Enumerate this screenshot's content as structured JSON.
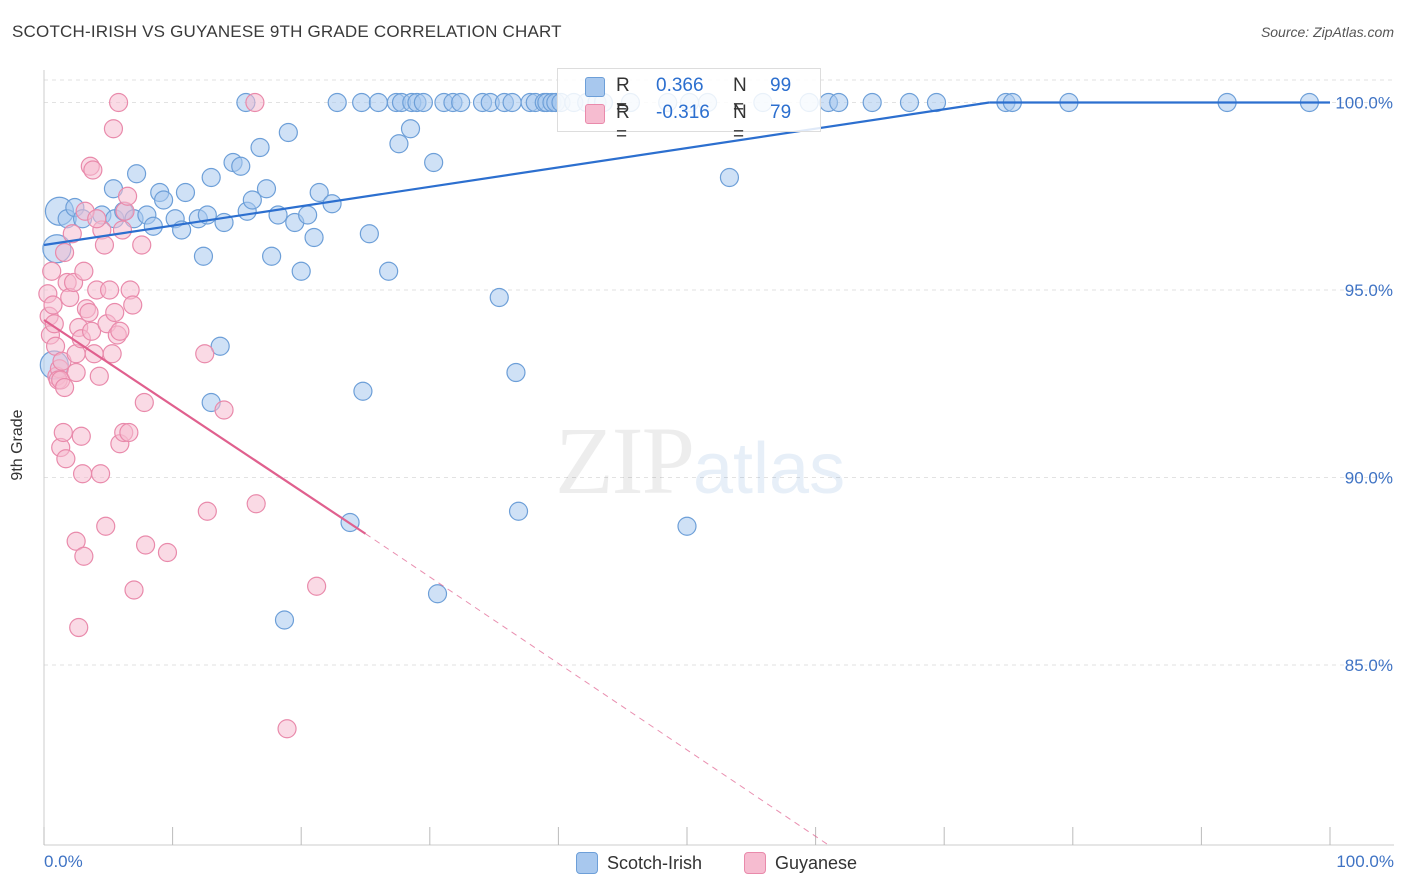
{
  "title": "SCOTCH-IRISH VS GUYANESE 9TH GRADE CORRELATION CHART",
  "source": "Source: ZipAtlas.com",
  "watermark": {
    "zip": "ZIP",
    "atlas": "atlas"
  },
  "legend_top": [
    {
      "r_label": "R =",
      "r_value": "0.366",
      "n_label": "N =",
      "n_value": "99"
    },
    {
      "r_label": "R =",
      "r_value": "-0.316",
      "n_label": "N =",
      "n_value": "79"
    }
  ],
  "legend_bottom": [
    "Scotch-Irish",
    "Guyanese"
  ],
  "x_tick_labels": {
    "left": "0.0%",
    "right": "100.0%"
  },
  "colors": {
    "blue_fill": "#a8c8ee",
    "blue_stroke": "#6d9fd8",
    "blue_line": "#2c6fcf",
    "pink_fill": "#f6bcd0",
    "pink_stroke": "#e98aab",
    "pink_line": "#e0608e",
    "tick_text": "#3f73c4"
  },
  "chart_data": {
    "type": "scatter",
    "title": "SCOTCH-IRISH VS GUYANESE 9TH GRADE CORRELATION CHART",
    "xlabel": "",
    "ylabel": "9th Grade",
    "xlim": [
      0,
      100
    ],
    "ylim": [
      80.2,
      100.6
    ],
    "y_ticks": [
      85,
      90,
      95,
      100
    ],
    "y_tick_labels": [
      "85.0%",
      "90.0%",
      "95.0%",
      "100.0%"
    ],
    "grid": true,
    "series": [
      {
        "name": "Scotch-Irish",
        "r": 0.366,
        "n": 99,
        "trend": {
          "x": [
            0,
            73.5
          ],
          "y": [
            96.2,
            100.0
          ]
        },
        "points": [
          [
            1.2,
            97.1
          ],
          [
            1.8,
            96.9
          ],
          [
            2.4,
            97.2
          ],
          [
            3.0,
            96.9
          ],
          [
            4.5,
            97.0
          ],
          [
            5.5,
            96.9
          ],
          [
            6.2,
            97.1
          ],
          [
            7.0,
            96.9
          ],
          [
            8.0,
            97.0
          ],
          [
            1.0,
            96.1
          ],
          [
            0.8,
            93.0
          ],
          [
            5.4,
            97.7
          ],
          [
            7.2,
            98.1
          ],
          [
            8.5,
            96.7
          ],
          [
            9.0,
            97.6
          ],
          [
            9.3,
            97.4
          ],
          [
            10.2,
            96.9
          ],
          [
            10.7,
            96.6
          ],
          [
            11.0,
            97.6
          ],
          [
            12.0,
            96.9
          ],
          [
            12.4,
            95.9
          ],
          [
            12.7,
            97.0
          ],
          [
            13.0,
            98.0
          ],
          [
            14.0,
            96.8
          ],
          [
            14.7,
            98.4
          ],
          [
            15.3,
            98.3
          ],
          [
            15.8,
            97.1
          ],
          [
            16.2,
            97.4
          ],
          [
            16.8,
            98.8
          ],
          [
            17.3,
            97.7
          ],
          [
            17.7,
            95.9
          ],
          [
            18.2,
            97.0
          ],
          [
            19.0,
            99.2
          ],
          [
            19.5,
            96.8
          ],
          [
            20.0,
            95.5
          ],
          [
            20.5,
            97.0
          ],
          [
            21.0,
            96.4
          ],
          [
            21.4,
            97.6
          ],
          [
            22.4,
            97.3
          ],
          [
            25.3,
            96.5
          ],
          [
            26.8,
            95.5
          ],
          [
            27.6,
            98.9
          ],
          [
            28.5,
            99.3
          ],
          [
            30.3,
            98.4
          ],
          [
            15.7,
            100.0
          ],
          [
            22.8,
            100.0
          ],
          [
            24.7,
            100.0
          ],
          [
            26.0,
            100.0
          ],
          [
            27.4,
            100.0
          ],
          [
            27.8,
            100.0
          ],
          [
            28.6,
            100.0
          ],
          [
            29.0,
            100.0
          ],
          [
            29.5,
            100.0
          ],
          [
            31.1,
            100.0
          ],
          [
            31.8,
            100.0
          ],
          [
            32.4,
            100.0
          ],
          [
            34.1,
            100.0
          ],
          [
            34.7,
            100.0
          ],
          [
            35.8,
            100.0
          ],
          [
            36.4,
            100.0
          ],
          [
            37.8,
            100.0
          ],
          [
            38.2,
            100.0
          ],
          [
            38.9,
            100.0
          ],
          [
            39.1,
            100.0
          ],
          [
            39.5,
            100.0
          ],
          [
            39.8,
            100.0
          ],
          [
            40.2,
            100.0
          ],
          [
            41.2,
            100.0
          ],
          [
            42.2,
            100.0
          ],
          [
            43.0,
            100.0
          ],
          [
            43.5,
            100.0
          ],
          [
            45.6,
            100.0
          ],
          [
            48.5,
            100.0
          ],
          [
            50.2,
            100.0
          ],
          [
            51.6,
            100.0
          ],
          [
            55.9,
            100.0
          ],
          [
            59.5,
            100.0
          ],
          [
            61.0,
            100.0
          ],
          [
            61.8,
            100.0
          ],
          [
            64.4,
            100.0
          ],
          [
            67.3,
            100.0
          ],
          [
            69.4,
            100.0
          ],
          [
            74.8,
            100.0
          ],
          [
            75.3,
            100.0
          ],
          [
            79.7,
            100.0
          ],
          [
            92.0,
            100.0
          ],
          [
            98.4,
            100.0
          ],
          [
            53.3,
            98.0
          ],
          [
            35.4,
            94.8
          ],
          [
            36.7,
            92.8
          ],
          [
            24.8,
            92.3
          ],
          [
            13.7,
            93.5
          ],
          [
            13.0,
            92.0
          ],
          [
            23.8,
            88.8
          ],
          [
            36.9,
            89.1
          ],
          [
            50.0,
            88.7
          ],
          [
            30.6,
            86.9
          ],
          [
            18.7,
            86.2
          ]
        ]
      },
      {
        "name": "Guyanese",
        "r": -0.316,
        "n": 79,
        "trend": {
          "x": [
            0,
            25.0
          ],
          "y": [
            94.2,
            88.5
          ]
        },
        "trend_dashed": {
          "x": [
            25.0,
            61.0
          ],
          "y": [
            88.5,
            80.2
          ]
        },
        "points": [
          [
            0.3,
            94.9
          ],
          [
            0.4,
            94.3
          ],
          [
            0.5,
            93.8
          ],
          [
            0.6,
            95.5
          ],
          [
            0.7,
            94.6
          ],
          [
            0.8,
            94.1
          ],
          [
            0.9,
            93.5
          ],
          [
            1.0,
            92.7
          ],
          [
            1.2,
            92.9
          ],
          [
            1.4,
            93.1
          ],
          [
            1.6,
            96.0
          ],
          [
            1.8,
            95.2
          ],
          [
            2.0,
            94.8
          ],
          [
            2.2,
            96.5
          ],
          [
            2.3,
            95.2
          ],
          [
            2.5,
            93.3
          ],
          [
            2.7,
            94.0
          ],
          [
            2.9,
            93.7
          ],
          [
            3.1,
            95.5
          ],
          [
            3.3,
            94.5
          ],
          [
            3.5,
            94.4
          ],
          [
            3.7,
            93.9
          ],
          [
            3.9,
            93.3
          ],
          [
            4.1,
            95.0
          ],
          [
            4.3,
            92.7
          ],
          [
            4.5,
            96.6
          ],
          [
            4.7,
            96.2
          ],
          [
            4.9,
            94.1
          ],
          [
            5.1,
            95.0
          ],
          [
            5.3,
            93.3
          ],
          [
            5.5,
            94.4
          ],
          [
            5.7,
            93.8
          ],
          [
            5.9,
            93.9
          ],
          [
            6.1,
            96.6
          ],
          [
            6.3,
            97.1
          ],
          [
            6.5,
            97.5
          ],
          [
            6.7,
            95.0
          ],
          [
            6.9,
            94.6
          ],
          [
            1.1,
            92.6
          ],
          [
            1.3,
            92.6
          ],
          [
            1.6,
            92.4
          ],
          [
            2.5,
            92.8
          ],
          [
            3.2,
            97.1
          ],
          [
            3.6,
            98.3
          ],
          [
            3.8,
            98.2
          ],
          [
            4.1,
            96.9
          ],
          [
            5.4,
            99.3
          ],
          [
            5.8,
            100.0
          ],
          [
            16.4,
            100.0
          ],
          [
            7.6,
            96.2
          ],
          [
            7.8,
            92.0
          ],
          [
            12.5,
            93.3
          ],
          [
            14.0,
            91.8
          ],
          [
            1.3,
            90.8
          ],
          [
            1.5,
            91.2
          ],
          [
            1.7,
            90.5
          ],
          [
            2.9,
            91.1
          ],
          [
            3.0,
            90.1
          ],
          [
            4.4,
            90.1
          ],
          [
            5.9,
            90.9
          ],
          [
            6.2,
            91.2
          ],
          [
            6.6,
            91.2
          ],
          [
            12.7,
            89.1
          ],
          [
            16.5,
            89.3
          ],
          [
            4.8,
            88.7
          ],
          [
            2.5,
            88.3
          ],
          [
            3.1,
            87.9
          ],
          [
            7.9,
            88.2
          ],
          [
            9.6,
            88.0
          ],
          [
            7.0,
            87.0
          ],
          [
            21.2,
            87.1
          ],
          [
            2.7,
            86.0
          ],
          [
            18.9,
            83.3
          ]
        ]
      }
    ]
  }
}
